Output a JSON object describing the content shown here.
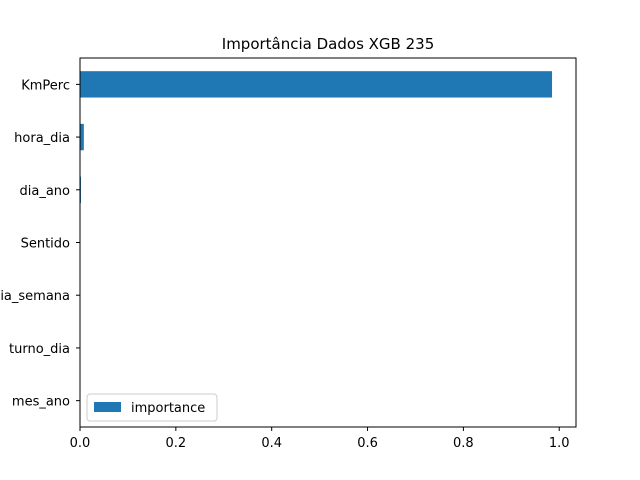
{
  "chart_data": {
    "type": "bar",
    "orientation": "horizontal",
    "title": "Importância Dados XGB 235",
    "xlabel": "",
    "ylabel": "",
    "categories": [
      "KmPerc",
      "hora_dia",
      "dia_ano",
      "Sentido",
      "dia_semana",
      "turno_dia",
      "mes_ano"
    ],
    "series": [
      {
        "name": "importance",
        "color": "#1f77b4",
        "values": [
          0.985,
          0.008,
          0.002,
          0.001,
          0.001,
          0.001,
          0.001
        ]
      }
    ],
    "xlim": [
      0.0,
      1.035
    ],
    "xticks": [
      0.0,
      0.2,
      0.4,
      0.6,
      0.8,
      1.0
    ],
    "xtick_labels": [
      "0.0",
      "0.2",
      "0.4",
      "0.6",
      "0.8",
      "1.0"
    ],
    "grid": false,
    "legend": {
      "position": "bottom-left",
      "entries": [
        "importance"
      ]
    }
  }
}
